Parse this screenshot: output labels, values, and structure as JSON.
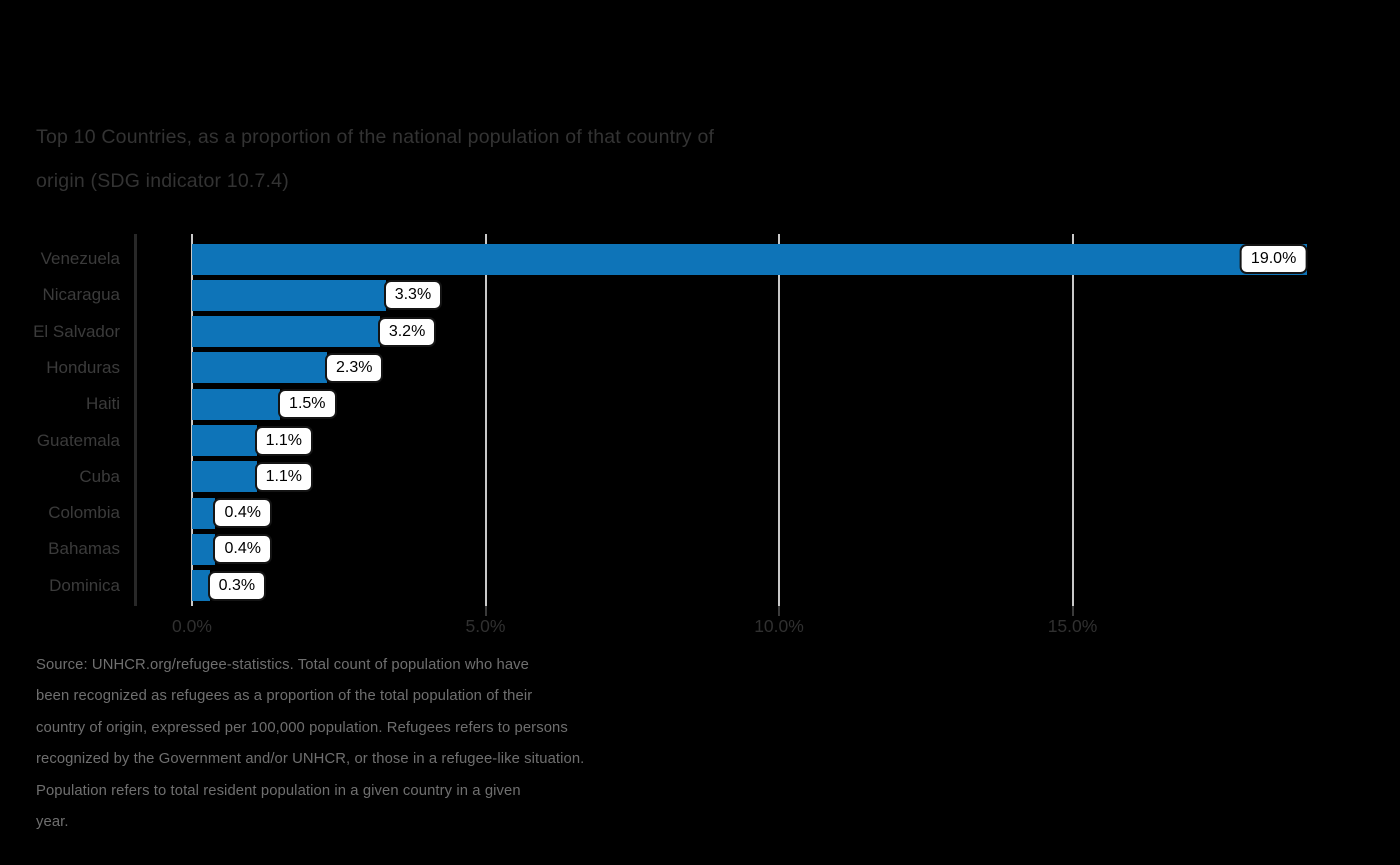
{
  "title": {
    "line1": "Top 10 Countries, as a proportion of the national population of that country of",
    "line2": "origin (SDG indicator 10.7.4)"
  },
  "chart_data": {
    "type": "bar",
    "orientation": "horizontal",
    "title": "Top 10 Countries, as a proportion of the national population of that country of origin (SDG indicator 10.7.4)",
    "categories": [
      "Venezuela",
      "Nicaragua",
      "El Salvador",
      "Honduras",
      "Haiti",
      "Guatemala",
      "Cuba",
      "Colombia",
      "Bahamas",
      "Dominica"
    ],
    "values": [
      19.0,
      3.3,
      3.2,
      2.3,
      1.5,
      1.1,
      1.1,
      0.4,
      0.4,
      0.3
    ],
    "value_labels": [
      "19.0%",
      "3.3%",
      "3.2%",
      "2.3%",
      "1.5%",
      "1.1%",
      "1.1%",
      "0.4%",
      "0.4%",
      "0.3%"
    ],
    "x_ticks": [
      {
        "value": 0,
        "label": "0.0%"
      },
      {
        "value": 5,
        "label": "5.0%"
      },
      {
        "value": 10,
        "label": "10.0%"
      },
      {
        "value": 15,
        "label": "15.0%"
      }
    ],
    "xlim": [
      0,
      19.2
    ],
    "grid": true,
    "legend": "none",
    "bar_color": "#0e74b8",
    "gridline_color": "#c9c9c9",
    "axis_line_color": "#282828",
    "label_color": "#3b3b3b"
  },
  "source": {
    "lines": [
      "Source: UNHCR.org/refugee-statistics. Total count of population who have",
      "been recognized as refugees as a proportion of the total population of their",
      "country of origin, expressed per 100,000 population. Refugees refers to persons",
      "recognized by the Government and/or UNHCR, or those in a refugee-like situation.",
      "Population refers to total resident population in a given country in a given",
      "year."
    ]
  }
}
